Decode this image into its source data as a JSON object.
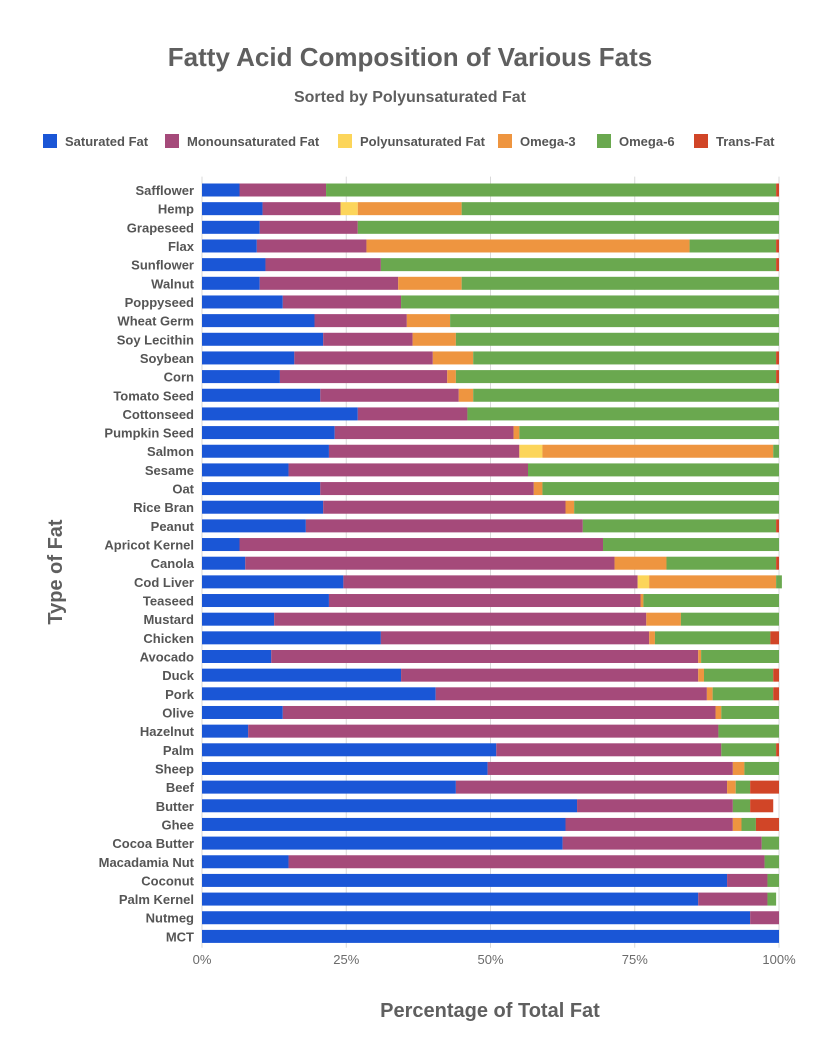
{
  "chart_data": {
    "type": "bar",
    "orientation": "horizontal",
    "stacked": true,
    "title": "Fatty Acid Composition of Various Fats",
    "subtitle": "Sorted by Polyunsaturated Fat",
    "xlabel": "Percentage of Total Fat",
    "ylabel": "Type of Fat",
    "xlim": [
      0,
      100
    ],
    "x_ticks": [
      "0%",
      "25%",
      "50%",
      "75%",
      "100%"
    ],
    "legend_position": "top",
    "grid": true,
    "categories": [
      "Safflower",
      "Hemp",
      "Grapeseed",
      "Flax",
      "Sunflower",
      "Walnut",
      "Poppyseed",
      "Wheat Germ",
      "Soy Lecithin",
      "Soybean",
      "Corn",
      "Tomato Seed",
      "Cottonseed",
      "Pumpkin Seed",
      "Salmon",
      "Sesame",
      "Oat",
      "Rice Bran",
      "Peanut",
      "Apricot Kernel",
      "Canola",
      "Cod Liver",
      "Teaseed",
      "Mustard",
      "Chicken",
      "Avocado",
      "Duck",
      "Pork",
      "Olive",
      "Hazelnut",
      "Palm",
      "Sheep",
      "Beef",
      "Butter",
      "Ghee",
      "Cocoa Butter",
      "Macadamia Nut",
      "Coconut",
      "Palm Kernel",
      "Nutmeg",
      "MCT"
    ],
    "series": [
      {
        "name": "Saturated Fat",
        "color": "#1a56d6",
        "values": [
          6.5,
          10.5,
          10,
          9.5,
          11,
          10,
          14,
          19.5,
          21,
          16,
          13.5,
          20.5,
          27,
          23,
          22,
          15,
          20.5,
          21,
          18,
          6.5,
          7.5,
          24.5,
          22,
          12.5,
          31,
          12,
          34.5,
          40.5,
          14,
          8,
          51,
          49.5,
          44,
          65,
          63,
          62.5,
          15,
          91,
          86,
          95,
          100
        ]
      },
      {
        "name": "Monounsaturated Fat",
        "color": "#a54a7a",
        "values": [
          15,
          13.5,
          17,
          19,
          20,
          24,
          20.5,
          16,
          15.5,
          24,
          29,
          24,
          19,
          31,
          33,
          41.5,
          37,
          42,
          48,
          63,
          64,
          51,
          54,
          64.5,
          46.5,
          74,
          51.5,
          47,
          75,
          81.5,
          39,
          42.5,
          47,
          27,
          29,
          34.5,
          82.5,
          7,
          12,
          5,
          0
        ]
      },
      {
        "name": "Polyunsaturated Fat",
        "color": "#fcd55a",
        "values": [
          0,
          3,
          0,
          0,
          0,
          0,
          0,
          0,
          0,
          0,
          0,
          0,
          0,
          0,
          4,
          0,
          0,
          0,
          0,
          0,
          0,
          2,
          0,
          0,
          0,
          0,
          0,
          0,
          0,
          0,
          0,
          0,
          0,
          0,
          0,
          0,
          0,
          0,
          0,
          0,
          0
        ]
      },
      {
        "name": "Omega-3",
        "color": "#ee9540",
        "values": [
          0,
          18,
          0,
          56,
          0,
          11,
          0,
          7.5,
          7.5,
          7,
          1.5,
          2.5,
          0,
          1,
          40,
          0,
          1.5,
          1.5,
          0,
          0,
          9,
          22,
          0.5,
          6,
          1,
          0.5,
          1,
          1,
          1,
          0,
          0,
          2,
          1.5,
          0,
          1.5,
          0,
          0,
          0,
          0,
          0,
          0
        ]
      },
      {
        "name": "Omega-6",
        "color": "#6aa84f",
        "values": [
          78,
          55,
          73,
          15,
          68.5,
          55,
          65.5,
          57,
          56,
          52.5,
          55.5,
          53,
          54,
          45,
          1,
          43.5,
          41,
          35.5,
          33.5,
          30.5,
          19,
          1,
          23.5,
          17,
          20,
          13.5,
          12,
          10.5,
          10,
          10.5,
          9.5,
          6,
          2.5,
          3,
          2.5,
          3,
          2.5,
          2,
          1.5,
          0,
          0
        ]
      },
      {
        "name": "Trans-Fat",
        "color": "#d14527",
        "values": [
          0.5,
          0,
          0,
          0.5,
          0.5,
          0,
          0,
          0,
          0,
          0.5,
          0.5,
          0,
          0,
          0,
          0,
          0,
          0,
          0,
          0.5,
          0,
          0.5,
          0,
          0,
          0,
          1.5,
          0,
          1,
          1,
          0,
          0,
          0.5,
          0,
          5,
          4,
          4,
          0,
          0,
          0,
          0,
          0,
          0
        ]
      }
    ]
  }
}
